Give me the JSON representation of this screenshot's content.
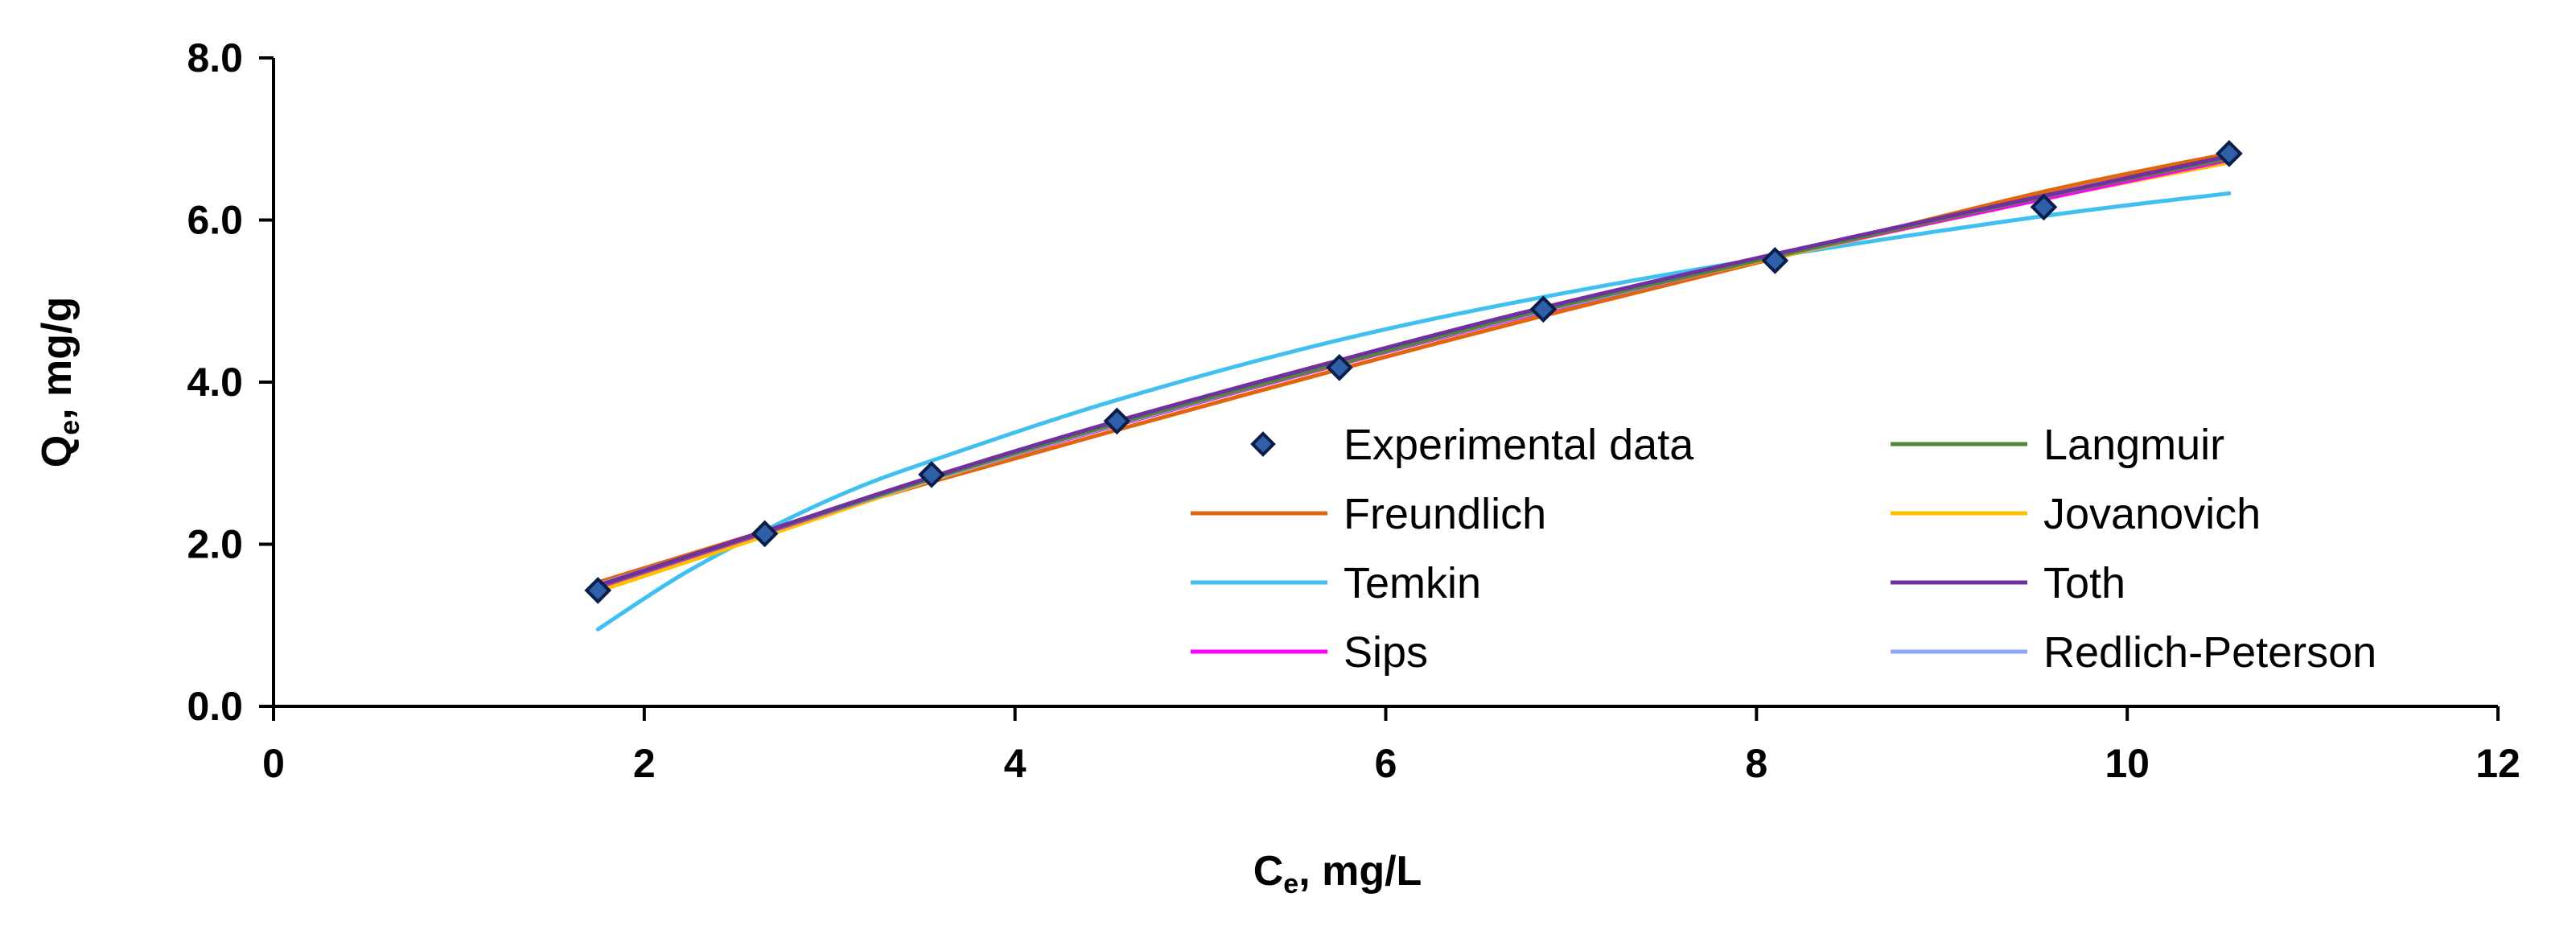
{
  "chart_data": {
    "type": "scatter",
    "title": "",
    "xlabel": {
      "main": "C",
      "sub": "e",
      "rest": ", mg/L"
    },
    "ylabel": {
      "main": "Q",
      "sub": "e",
      "rest": ", mg/g"
    },
    "xlim": [
      0,
      12
    ],
    "ylim": [
      0,
      8
    ],
    "xticks": [
      0,
      2,
      4,
      6,
      8,
      10,
      12
    ],
    "xtick_labels": [
      "0",
      "2",
      "4",
      "6",
      "8",
      "10",
      "12"
    ],
    "yticks": [
      0,
      2,
      4,
      6,
      8
    ],
    "ytick_labels": [
      "0.0",
      "2.0",
      "4.0",
      "6.0",
      "8.0"
    ],
    "grid": false,
    "legend_position": "bottom-right",
    "experimental": {
      "name": "Experimental data",
      "color": "#2E5FA8",
      "x": [
        1.75,
        2.65,
        3.55,
        4.55,
        5.75,
        6.85,
        8.1,
        9.55,
        10.55
      ],
      "y": [
        1.43,
        2.13,
        2.86,
        3.52,
        4.18,
        4.9,
        5.5,
        6.16,
        6.82
      ]
    },
    "series": [
      {
        "name": "Freundlich",
        "color": "#E2650E",
        "x": [
          1.75,
          2.65,
          3.55,
          4.55,
          5.75,
          6.85,
          8.1,
          9.55,
          10.55
        ],
        "y": [
          1.53,
          2.16,
          2.77,
          3.41,
          4.16,
          4.82,
          5.53,
          6.35,
          6.82
        ]
      },
      {
        "name": "Temkin",
        "color": "#3FC0F0",
        "x": [
          1.75,
          2.2,
          2.65,
          3.1,
          3.55,
          4.55,
          5.75,
          6.85,
          8.1,
          9.55,
          10.55
        ],
        "y": [
          0.95,
          1.62,
          2.17,
          2.65,
          3.03,
          3.78,
          4.52,
          5.05,
          5.55,
          6.05,
          6.33
        ]
      },
      {
        "name": "Sips",
        "color": "#FF00FF",
        "x": [
          1.75,
          2.65,
          3.55,
          4.55,
          5.75,
          6.85,
          8.1,
          9.55,
          10.55
        ],
        "y": [
          1.47,
          2.14,
          2.8,
          3.47,
          4.22,
          4.87,
          5.55,
          6.26,
          6.74
        ]
      },
      {
        "name": "Langmuir",
        "color": "#4E8A3A",
        "x": [
          1.75,
          2.65,
          3.55,
          4.55,
          5.75,
          6.85,
          8.1,
          9.55,
          10.55
        ],
        "y": [
          1.48,
          2.15,
          2.81,
          3.49,
          4.23,
          4.89,
          5.55,
          6.29,
          6.76
        ]
      },
      {
        "name": "Jovanovich",
        "color": "#FFC000",
        "x": [
          1.75,
          2.65,
          3.55,
          4.55,
          5.75,
          6.85,
          8.1,
          9.55,
          10.55
        ],
        "y": [
          1.42,
          2.1,
          2.79,
          3.47,
          4.22,
          4.88,
          5.54,
          6.26,
          6.71
        ]
      },
      {
        "name": "Toth",
        "color": "#7030A0",
        "x": [
          1.75,
          2.65,
          3.55,
          4.55,
          5.75,
          6.85,
          8.1,
          9.55,
          10.55
        ],
        "y": [
          1.49,
          2.16,
          2.83,
          3.52,
          4.27,
          4.92,
          5.58,
          6.3,
          6.79
        ]
      },
      {
        "name": "Redlich-Peterson",
        "color": "#8FA8F5",
        "x": [
          1.75,
          2.65,
          3.55,
          4.55,
          5.75,
          6.85,
          8.1,
          9.55,
          10.55
        ],
        "y": [
          1.5,
          2.15,
          2.8,
          3.48,
          4.23,
          4.88,
          5.56,
          6.3,
          6.78
        ]
      }
    ],
    "legend_left": [
      "Experimental data",
      "Freundlich",
      "Temkin",
      "Sips"
    ],
    "legend_right": [
      "Langmuir",
      "Jovanovich",
      "Toth",
      "Redlich-Peterson"
    ]
  }
}
